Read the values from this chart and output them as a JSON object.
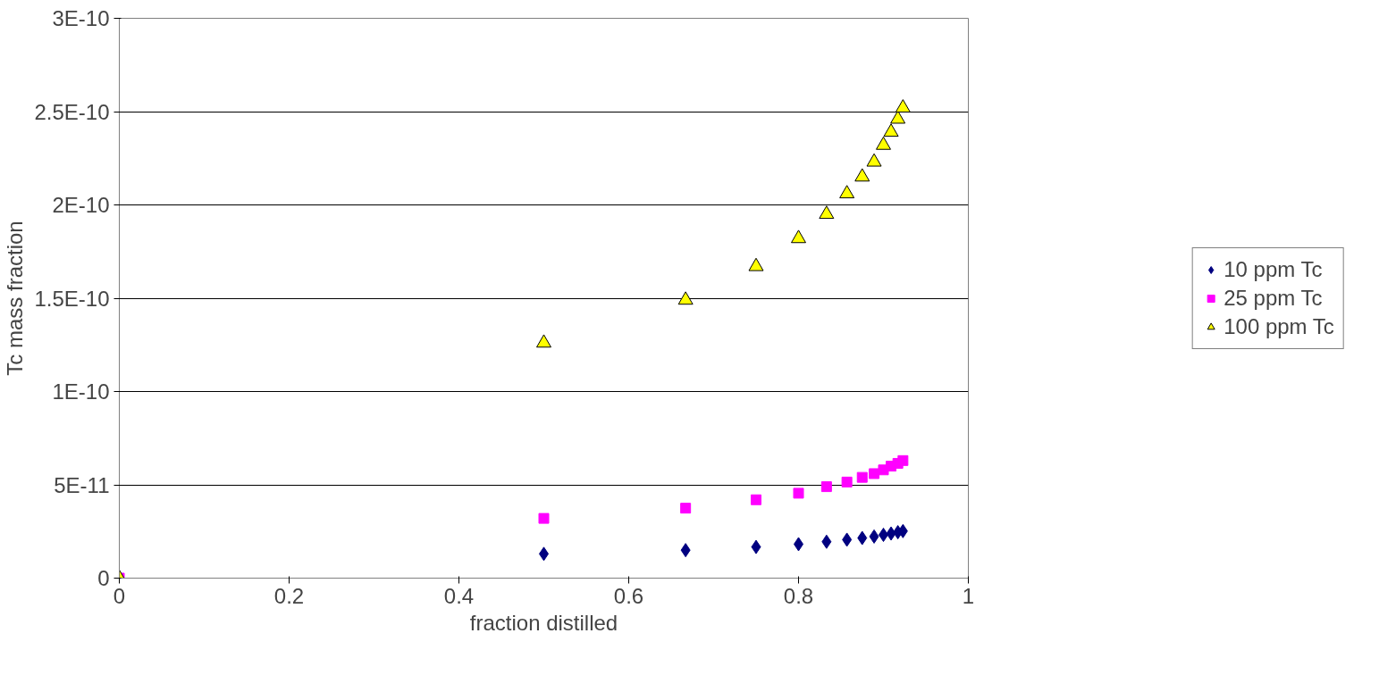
{
  "chart_data": {
    "type": "scatter",
    "xlabel": "fraction distilled",
    "ylabel": "Tc mass fraction",
    "x": [
      0,
      0.5,
      0.667,
      0.75,
      0.8,
      0.833,
      0.857,
      0.875,
      0.889,
      0.9,
      0.909,
      0.917,
      0.923
    ],
    "series": [
      {
        "name": "10 ppm Tc",
        "color": "#000080",
        "marker": "diamond",
        "values": [
          null,
          1.3e-11,
          1.5e-11,
          1.67e-11,
          1.82e-11,
          1.95e-11,
          2.06e-11,
          2.15e-11,
          2.23e-11,
          2.32e-11,
          2.39e-11,
          2.46e-11,
          2.52e-11
        ]
      },
      {
        "name": "25 ppm Tc",
        "color": "#ff00ff",
        "marker": "square",
        "values": [
          0,
          3.2e-11,
          3.75e-11,
          4.2e-11,
          4.55e-11,
          4.9e-11,
          5.15e-11,
          5.4e-11,
          5.6e-11,
          5.8e-11,
          6e-11,
          6.15e-11,
          6.3e-11
        ]
      },
      {
        "name": "100 ppm Tc",
        "color": "#ffff00",
        "marker": "triangle",
        "values": [
          0,
          1.26e-10,
          1.49e-10,
          1.67e-10,
          1.82e-10,
          1.95e-10,
          2.06e-10,
          2.15e-10,
          2.23e-10,
          2.32e-10,
          2.39e-10,
          2.46e-10,
          2.52e-10
        ]
      }
    ],
    "xlim": [
      0,
      1
    ],
    "xticks": [
      0,
      0.2,
      0.4,
      0.6,
      0.8,
      1
    ],
    "ylim": [
      0,
      3e-10
    ],
    "yticks": [
      0,
      {
        "value": 5e-11,
        "label": "5E-11"
      },
      {
        "value": 1e-10,
        "label": "1E-10"
      },
      {
        "value": 1.5e-10,
        "label": "1.5E-10"
      },
      {
        "value": 2e-10,
        "label": "2E-10"
      },
      {
        "value": 2.5e-10,
        "label": "2.5E-10"
      },
      {
        "value": 3e-10,
        "label": "3E-10"
      }
    ],
    "grid": "y",
    "legend": "right"
  }
}
